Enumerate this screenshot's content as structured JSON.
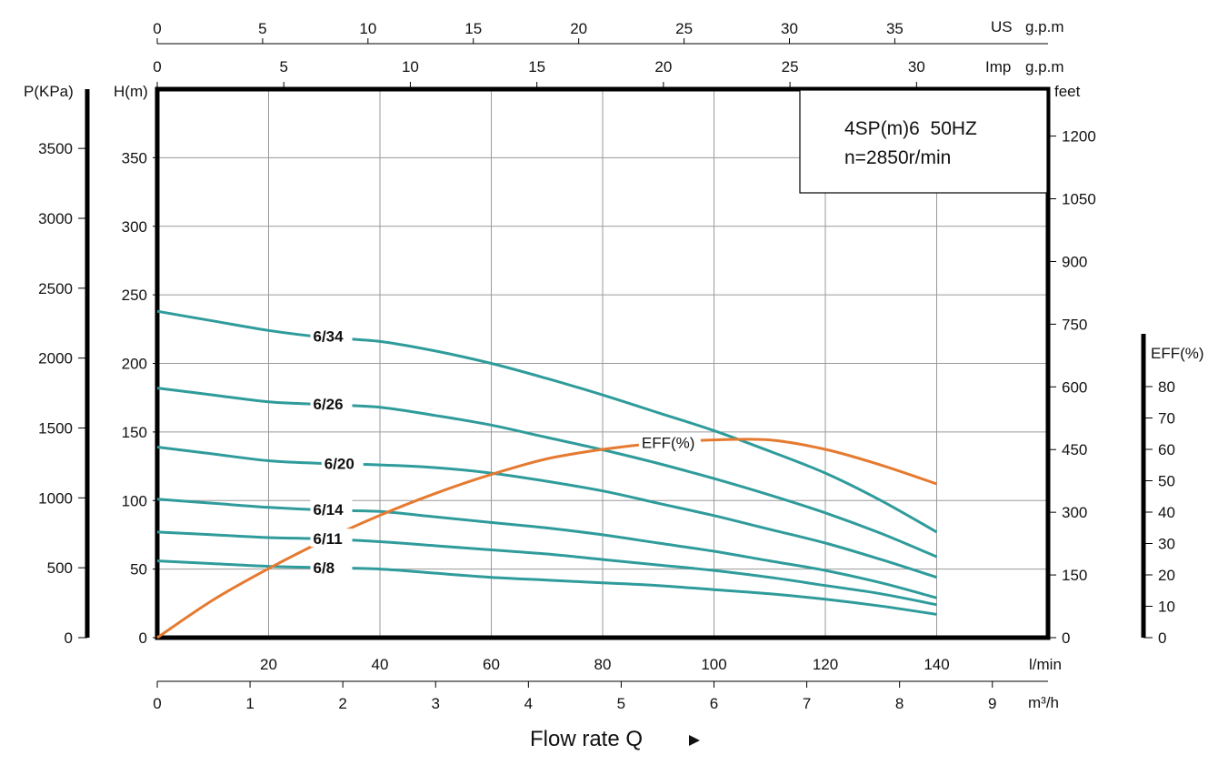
{
  "chart_data": {
    "type": "line",
    "title": "4SP(m)6  50HZ",
    "subtitle": "n=2850r/min",
    "xlabel": "Flow rate Q",
    "x_unit": "l/min",
    "ylabel": "H(m)",
    "xlim": [
      0,
      160
    ],
    "ylim": [
      0,
      400
    ],
    "grid": true,
    "x_ticks": [
      20,
      40,
      60,
      80,
      100,
      120,
      140
    ],
    "y_ticks": [
      0,
      50,
      100,
      150,
      200,
      250,
      300,
      350
    ],
    "secondary_axes": {
      "us_gpm": {
        "label": "US",
        "unit": "g.p.m",
        "ticks": [
          0,
          5,
          10,
          15,
          20,
          25,
          30,
          35
        ]
      },
      "imp_gpm": {
        "label": "Imp",
        "unit": "g.p.m",
        "ticks": [
          0,
          5,
          10,
          15,
          20,
          25,
          30
        ]
      },
      "m3h": {
        "label": "m³/h",
        "ticks": [
          0,
          1,
          2,
          3,
          4,
          5,
          6,
          7,
          8,
          9
        ]
      },
      "pressure": {
        "label": "P(KPa)",
        "ticks": [
          0,
          500,
          1000,
          1500,
          2000,
          2500,
          3000,
          3500
        ]
      },
      "feet": {
        "label": "feet",
        "ticks": [
          0,
          150,
          300,
          450,
          600,
          750,
          900,
          1050,
          1200
        ]
      },
      "eff": {
        "label": "EFF(%)",
        "ticks": [
          0,
          10,
          20,
          30,
          40,
          50,
          60,
          70,
          80
        ]
      }
    },
    "series": [
      {
        "name": "6/34",
        "x": [
          0,
          10,
          20,
          30,
          40,
          50,
          60,
          70,
          80,
          90,
          100,
          110,
          120,
          130,
          140
        ],
        "y": [
          238,
          231,
          224,
          219,
          216,
          209,
          200,
          189,
          177,
          164,
          151,
          136,
          120,
          100,
          77
        ]
      },
      {
        "name": "6/26",
        "x": [
          0,
          10,
          20,
          30,
          40,
          50,
          60,
          70,
          80,
          90,
          100,
          110,
          120,
          130,
          140
        ],
        "y": [
          182,
          177,
          172,
          170,
          168,
          162,
          155,
          146,
          137,
          127,
          116,
          104,
          91,
          76,
          59
        ]
      },
      {
        "name": "6/20",
        "x": [
          0,
          10,
          20,
          30,
          40,
          50,
          60,
          70,
          80,
          90,
          100,
          110,
          120,
          130,
          140
        ],
        "y": [
          139,
          134,
          129,
          127,
          126,
          124,
          120,
          114,
          107,
          98,
          89,
          79,
          69,
          57,
          44
        ]
      },
      {
        "name": "6/14",
        "x": [
          0,
          10,
          20,
          30,
          40,
          50,
          60,
          70,
          80,
          90,
          100,
          110,
          120,
          130,
          140
        ],
        "y": [
          101,
          98,
          95,
          93,
          92,
          88,
          84,
          80,
          75,
          69,
          63,
          56,
          49,
          40,
          29
        ]
      },
      {
        "name": "6/11",
        "x": [
          0,
          10,
          20,
          30,
          40,
          50,
          60,
          70,
          80,
          90,
          100,
          110,
          120,
          130,
          140
        ],
        "y": [
          77,
          75,
          73,
          72,
          70,
          67,
          64,
          61,
          57,
          53,
          49,
          44,
          38,
          32,
          24
        ]
      },
      {
        "name": "6/8",
        "x": [
          0,
          10,
          20,
          30,
          40,
          50,
          60,
          70,
          80,
          90,
          100,
          110,
          120,
          130,
          140
        ],
        "y": [
          56,
          54,
          52,
          51,
          50,
          47,
          44,
          42,
          40,
          38,
          35,
          32,
          28,
          23,
          17
        ]
      },
      {
        "name": "EFF(%)",
        "axis": "eff",
        "x": [
          0,
          10,
          20,
          30,
          40,
          50,
          60,
          70,
          80,
          90,
          100,
          110,
          120,
          130,
          140
        ],
        "y": [
          0,
          12,
          22,
          31,
          39,
          46,
          52,
          57,
          60,
          62,
          63,
          63,
          60,
          55,
          49
        ]
      }
    ]
  }
}
